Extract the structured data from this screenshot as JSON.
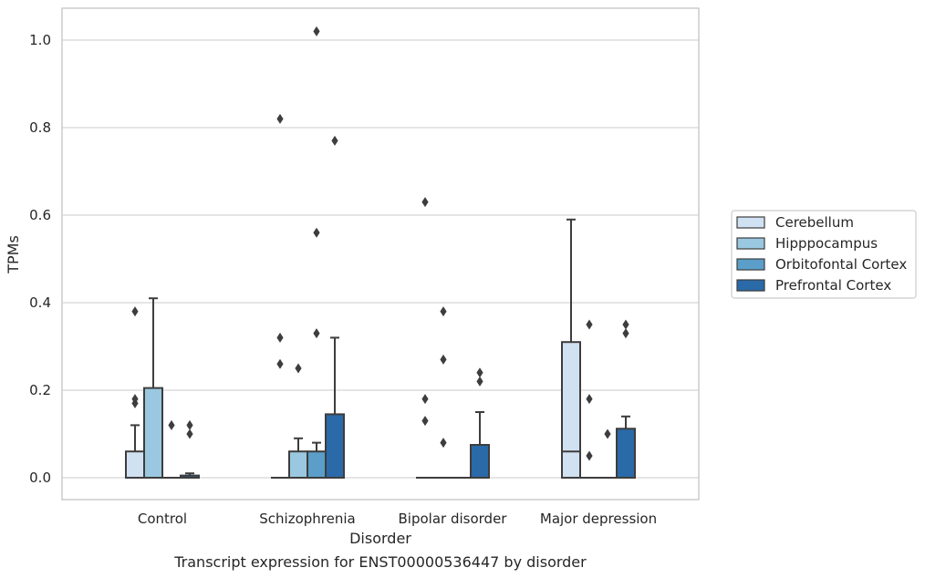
{
  "chart_data": {
    "type": "box",
    "xlabel": "Disorder",
    "ylabel": "TPMs",
    "caption": "Transcript expression for ENST00000536447 by disorder",
    "ylim": [
      -0.05,
      1.07
    ],
    "yticks": [
      0.0,
      0.2,
      0.4,
      0.6,
      0.8,
      1.0
    ],
    "ytick_labels": [
      "0.0",
      "0.2",
      "0.4",
      "0.6",
      "0.8",
      "1.0"
    ],
    "grid": "horizontal",
    "legend_position": "right",
    "categories": [
      "Control",
      "Schizophrenia",
      "Bipolar disorder",
      "Major depression"
    ],
    "series": [
      {
        "name": "Cerebellum",
        "color": "#d0e1f2",
        "boxes": [
          {
            "q1": 0.0,
            "median": 0.0,
            "q3": 0.06,
            "whisker_low": 0.0,
            "whisker_high": 0.12,
            "outliers": [
              0.17,
              0.18,
              0.38
            ]
          },
          {
            "q1": 0.0,
            "median": 0.0,
            "q3": 0.0,
            "whisker_low": 0.0,
            "whisker_high": 0.0,
            "outliers": [
              0.26,
              0.32,
              0.82
            ]
          },
          {
            "q1": 0.0,
            "median": 0.0,
            "q3": 0.0,
            "whisker_low": 0.0,
            "whisker_high": 0.0,
            "outliers": [
              0.13,
              0.18,
              0.63
            ]
          },
          {
            "q1": 0.0,
            "median": 0.06,
            "q3": 0.31,
            "whisker_low": 0.0,
            "whisker_high": 0.59,
            "outliers": []
          }
        ]
      },
      {
        "name": "Hipppocampus",
        "color": "#9ac8e0",
        "boxes": [
          {
            "q1": 0.0,
            "median": 0.0,
            "q3": 0.205,
            "whisker_low": 0.0,
            "whisker_high": 0.41,
            "outliers": []
          },
          {
            "q1": 0.0,
            "median": 0.0,
            "q3": 0.06,
            "whisker_low": 0.0,
            "whisker_high": 0.09,
            "outliers": [
              0.25
            ]
          },
          {
            "q1": 0.0,
            "median": 0.0,
            "q3": 0.0,
            "whisker_low": 0.0,
            "whisker_high": 0.0,
            "outliers": [
              0.08,
              0.27,
              0.38
            ]
          },
          {
            "q1": 0.0,
            "median": 0.0,
            "q3": 0.0,
            "whisker_low": 0.0,
            "whisker_high": 0.0,
            "outliers": [
              0.05,
              0.18,
              0.35
            ]
          }
        ]
      },
      {
        "name": "Orbitofontal Cortex",
        "color": "#5a9ec9",
        "boxes": [
          {
            "q1": 0.0,
            "median": 0.0,
            "q3": 0.0,
            "whisker_low": 0.0,
            "whisker_high": 0.0,
            "outliers": [
              0.12
            ]
          },
          {
            "q1": 0.0,
            "median": 0.0,
            "q3": 0.06,
            "whisker_low": 0.0,
            "whisker_high": 0.08,
            "outliers": [
              0.33,
              0.56,
              1.02
            ]
          },
          {
            "q1": 0.0,
            "median": 0.0,
            "q3": 0.0,
            "whisker_low": 0.0,
            "whisker_high": 0.0,
            "outliers": []
          },
          {
            "q1": 0.0,
            "median": 0.0,
            "q3": 0.0,
            "whisker_low": 0.0,
            "whisker_high": 0.0,
            "outliers": [
              0.1
            ]
          }
        ]
      },
      {
        "name": "Prefrontal Cortex",
        "color": "#2a6aa8",
        "boxes": [
          {
            "q1": 0.0,
            "median": 0.0,
            "q3": 0.005,
            "whisker_low": 0.0,
            "whisker_high": 0.01,
            "outliers": [
              0.1,
              0.12
            ]
          },
          {
            "q1": 0.0,
            "median": 0.0,
            "q3": 0.145,
            "whisker_low": 0.0,
            "whisker_high": 0.32,
            "outliers": [
              0.77
            ]
          },
          {
            "q1": 0.0,
            "median": 0.0,
            "q3": 0.075,
            "whisker_low": 0.0,
            "whisker_high": 0.15,
            "outliers": [
              0.22,
              0.24
            ]
          },
          {
            "q1": 0.0,
            "median": 0.0,
            "q3": 0.112,
            "whisker_low": 0.0,
            "whisker_high": 0.14,
            "outliers": [
              0.33,
              0.35
            ]
          }
        ]
      }
    ]
  },
  "colors": {
    "grid": "#d5d5d5",
    "frame": "#cccccc",
    "line": "#3d3d3d"
  }
}
